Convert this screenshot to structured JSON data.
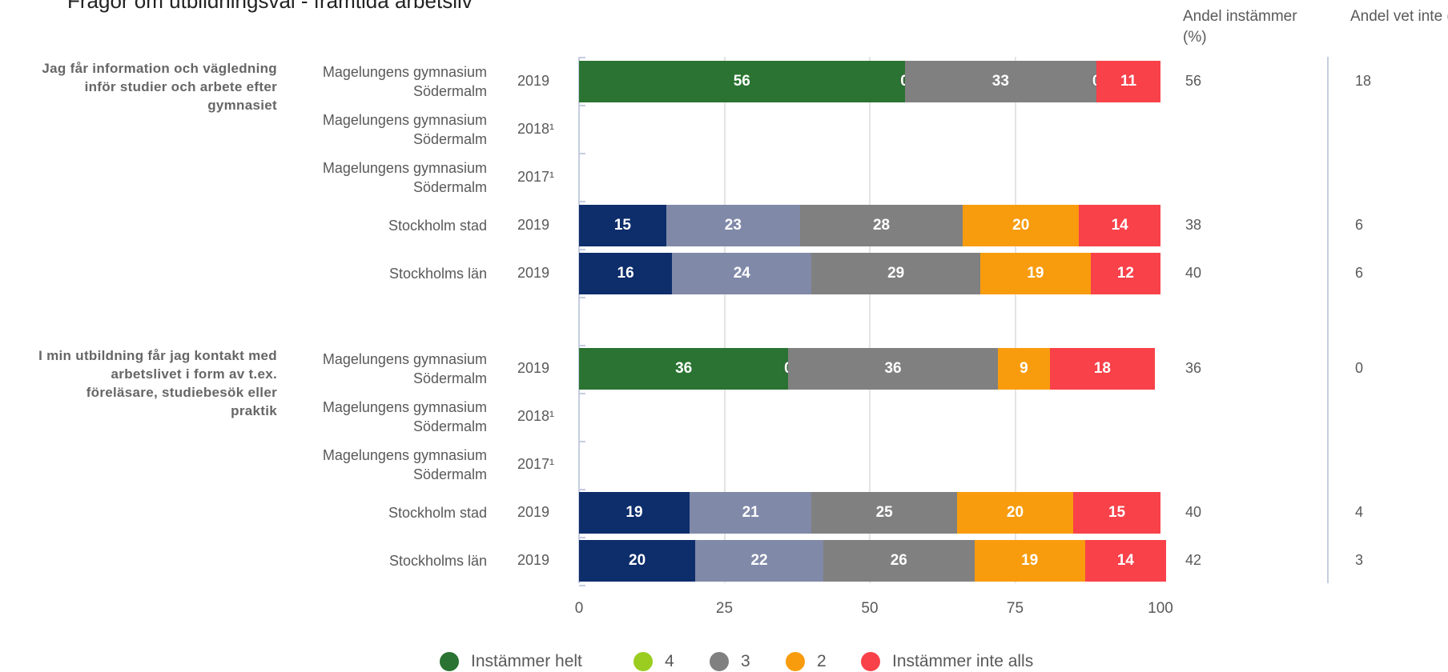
{
  "chart_data": {
    "type": "stacked-bar",
    "title": "Frågor om utbildningsval - framtida arbetsliv",
    "xlim": [
      0,
      100
    ],
    "xticks": [
      0,
      25,
      50,
      75,
      100
    ],
    "grid": true,
    "legend": [
      {
        "name": "Instämmer helt",
        "color": "#2a7332"
      },
      {
        "name": "4",
        "color": "#9acd1f"
      },
      {
        "name": "3",
        "color": "#808080"
      },
      {
        "name": "2",
        "color": "#f89c0e"
      },
      {
        "name": "Instämmer inte alls",
        "color": "#f84149"
      }
    ],
    "column_headers": [
      "Andel instämmer (%)",
      "Andel vet inte (%)"
    ],
    "groups": [
      {
        "question": "Jag får information och vägledning inför studier och arbete efter gymnasiet",
        "categories": [
          "Magelungens gymnasium Södermalm",
          "Magelungens gymnasium Södermalm",
          "Magelungens gymnasium Södermalm",
          "Stockholm stad",
          "Stockholms län"
        ],
        "years": [
          "2019",
          "2018¹",
          "2017¹",
          "2019",
          "2019"
        ],
        "series": [
          {
            "colors": [
              "#2a7332",
              null,
              null,
              "#0d2d6b",
              "#0d2d6b"
            ],
            "values": [
              56,
              null,
              null,
              15,
              16
            ]
          },
          {
            "colors": [
              "#9acd1f",
              null,
              null,
              "#8089a8",
              "#8089a8"
            ],
            "values": [
              0,
              null,
              null,
              23,
              24
            ]
          },
          {
            "colors": [
              "#808080",
              null,
              null,
              "#808080",
              "#808080"
            ],
            "values": [
              33,
              null,
              null,
              28,
              29
            ]
          },
          {
            "colors": [
              "#f89c0e",
              null,
              null,
              "#f89c0e",
              "#f89c0e"
            ],
            "values": [
              0,
              null,
              null,
              20,
              19
            ]
          },
          {
            "colors": [
              "#f84149",
              null,
              null,
              "#f84149",
              "#f84149"
            ],
            "values": [
              11,
              null,
              null,
              14,
              12
            ]
          }
        ],
        "agree": [
          56,
          null,
          null,
          38,
          40
        ],
        "dont_know": [
          18,
          null,
          null,
          6,
          6
        ]
      },
      {
        "question": "I min utbildning får jag kontakt med arbetslivet i form av t.ex. föreläsare, studiebesök eller praktik",
        "categories": [
          "Magelungens gymnasium Södermalm",
          "Magelungens gymnasium Södermalm",
          "Magelungens gymnasium Södermalm",
          "Stockholm stad",
          "Stockholms län"
        ],
        "years": [
          "2019",
          "2018¹",
          "2017¹",
          "2019",
          "2019"
        ],
        "series": [
          {
            "colors": [
              "#2a7332",
              null,
              null,
              "#0d2d6b",
              "#0d2d6b"
            ],
            "values": [
              36,
              null,
              null,
              19,
              20
            ]
          },
          {
            "colors": [
              "#9acd1f",
              null,
              null,
              "#8089a8",
              "#8089a8"
            ],
            "values": [
              0,
              null,
              null,
              21,
              22
            ]
          },
          {
            "colors": [
              "#808080",
              null,
              null,
              "#808080",
              "#808080"
            ],
            "values": [
              36,
              null,
              null,
              25,
              26
            ]
          },
          {
            "colors": [
              "#f89c0e",
              null,
              null,
              "#f89c0e",
              "#f89c0e"
            ],
            "values": [
              9,
              null,
              null,
              20,
              19
            ]
          },
          {
            "colors": [
              "#f84149",
              null,
              null,
              "#f84149",
              "#f84149"
            ],
            "values": [
              18,
              null,
              null,
              15,
              14
            ]
          }
        ],
        "agree": [
          36,
          null,
          null,
          40,
          42
        ],
        "dont_know": [
          0,
          null,
          null,
          4,
          3
        ]
      }
    ]
  }
}
